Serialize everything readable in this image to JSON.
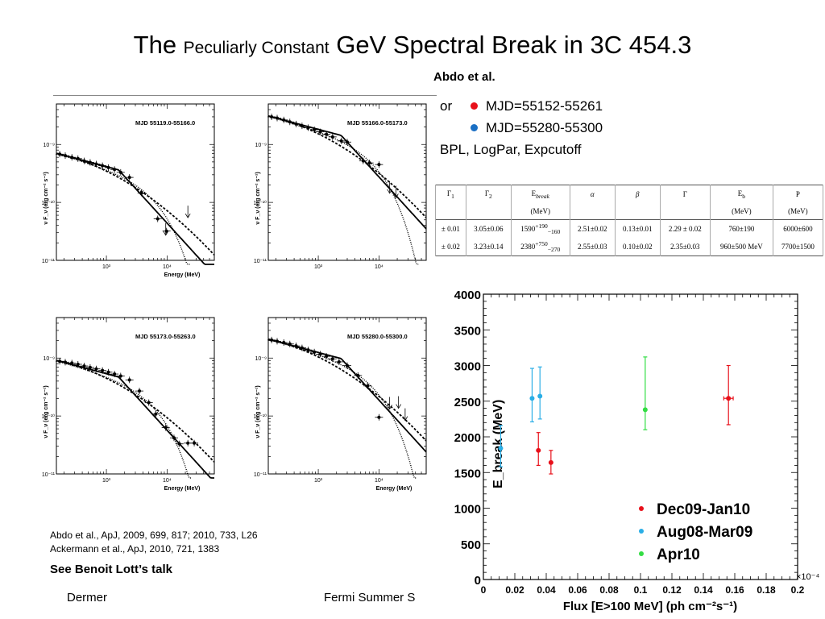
{
  "slide": {
    "title_part1": "The ",
    "title_part2": "Peculiarly Constant",
    "title_part3": " GeV Spectral Break in 3C 454.3",
    "subtitle": "Abdo et al.",
    "legend_top": [
      {
        "prefix": "or",
        "color": "#e8101a",
        "label": "MJD=55152-55261"
      },
      {
        "prefix": "",
        "color": "#1a6fc4",
        "label": "MJD=55280-55300"
      }
    ],
    "legend_models": "BPL, LogPar, Expcutoff",
    "references": [
      "Abdo et al., ApJ, 2009, 699, 817; 2010, 733, L26",
      "Ackermann et al., ApJ, 2010, 721, 1383"
    ],
    "see_talk": "See Benoit Lott’s talk",
    "footer_left": "Dermer",
    "footer_mid": "Fermi Summer S"
  },
  "param_table": {
    "headers": [
      "Γ1",
      "Γ2",
      "E_break",
      "α",
      "β",
      "Γ",
      "E_b",
      "P"
    ],
    "units": [
      "",
      "",
      "(MeV)",
      "",
      "",
      "",
      "(MeV)",
      "(MeV)"
    ],
    "rows": [
      [
        "± 0.01",
        "3.05±0.06",
        "1590+190−160",
        "2.51±0.02",
        "0.13±0.01",
        "2.29 ± 0.02",
        "760±190",
        "6000±600"
      ],
      [
        "± 0.02",
        "3.23±0.14",
        "2380+750−270",
        "2.55±0.03",
        "0.10±0.02",
        "2.35±0.03",
        "960±500 MeV",
        "7700±1500"
      ]
    ]
  },
  "chart_data": [
    {
      "type": "scatter",
      "title": "MJD 55119.0-55166.0",
      "xlabel": "Energy (MeV)",
      "ylabel": "ν F_ν (erg cm⁻² s⁻¹)",
      "xscale": "log",
      "yscale": "log",
      "xlim": [
        150,
        60000
      ],
      "ylim": [
        1e-11,
        5e-09
      ],
      "x_ticks": [
        "10³",
        "10⁴"
      ],
      "y_ticks": [
        "10⁻⁹",
        "10⁻¹⁰",
        "10⁻¹¹"
      ],
      "points": [
        [
          170,
          6.8e-10
        ],
        [
          210,
          6.4e-10
        ],
        [
          270,
          6e-10
        ],
        [
          340,
          5.7e-10
        ],
        [
          430,
          5.2e-10
        ],
        [
          540,
          4.9e-10
        ],
        [
          680,
          4.6e-10
        ],
        [
          860,
          4.3e-10
        ],
        [
          1080,
          4e-10
        ],
        [
          1360,
          3.7e-10
        ],
        [
          1720,
          3.3e-10
        ],
        [
          2400,
          2.7e-10
        ],
        [
          3800,
          1.45e-10
        ],
        [
          7000,
          5.2e-11
        ],
        [
          9800,
          3.2e-11
        ]
      ],
      "upper_limits": [
        [
          9500,
          3.4e-11
        ],
        [
          22000,
          6.8e-11
        ]
      ],
      "break_energy": 1590,
      "models": [
        "BPL",
        "LogPar",
        "Expcutoff"
      ]
    },
    {
      "type": "scatter",
      "title": "MJD 55166.0-55173.0",
      "xlabel": "",
      "ylabel": "ν F_ν (erg cm⁻² s⁻¹)",
      "xscale": "log",
      "yscale": "log",
      "xlim": [
        150,
        60000
      ],
      "ylim": [
        1e-11,
        5e-09
      ],
      "x_ticks": [
        "10³",
        "10⁴"
      ],
      "y_ticks": [
        "10⁻⁹",
        "10⁻¹⁰",
        "10⁻¹¹"
      ],
      "points": [
        [
          170,
          3e-09
        ],
        [
          210,
          2.85e-09
        ],
        [
          270,
          2.65e-09
        ],
        [
          340,
          2.45e-09
        ],
        [
          430,
          2.25e-09
        ],
        [
          540,
          2.1e-09
        ],
        [
          680,
          1.95e-09
        ],
        [
          860,
          1.8e-09
        ],
        [
          1080,
          1.65e-09
        ],
        [
          1360,
          1.5e-09
        ],
        [
          1720,
          1.35e-09
        ],
        [
          2400,
          1.15e-09
        ],
        [
          3000,
          1.1e-09
        ],
        [
          5500,
          5.2e-10
        ],
        [
          7000,
          4.8e-10
        ],
        [
          10000,
          4.5e-10
        ]
      ],
      "upper_limits": [
        [
          15000,
          1.8e-10
        ],
        [
          19000,
          1.5e-10
        ]
      ],
      "break_energy": 2380,
      "models": [
        "BPL",
        "LogPar",
        "Expcutoff"
      ]
    },
    {
      "type": "scatter",
      "title": "MJD 55173.0-55263.0",
      "xlabel": "Energy (MeV)",
      "ylabel": "ν F_ν (erg cm⁻² s⁻¹)",
      "xscale": "log",
      "yscale": "log",
      "xlim": [
        150,
        60000
      ],
      "ylim": [
        1e-11,
        5e-09
      ],
      "x_ticks": [
        "10³",
        "10⁴"
      ],
      "y_ticks": [
        "10⁻⁹",
        "10⁻¹⁰",
        "10⁻¹¹"
      ],
      "points": [
        [
          170,
          8.8e-10
        ],
        [
          210,
          8.5e-10
        ],
        [
          270,
          8.2e-10
        ],
        [
          340,
          7.8e-10
        ],
        [
          430,
          7.3e-10
        ],
        [
          540,
          6.9e-10
        ],
        [
          680,
          6.5e-10
        ],
        [
          860,
          6.1e-10
        ],
        [
          1080,
          5.7e-10
        ],
        [
          1360,
          5.3e-10
        ],
        [
          1720,
          4.9e-10
        ],
        [
          2400,
          4.2e-10
        ],
        [
          3500,
          2.7e-10
        ],
        [
          5000,
          1.7e-10
        ],
        [
          6500,
          1.08e-10
        ],
        [
          9500,
          6.3e-11
        ],
        [
          13000,
          4.2e-11
        ],
        [
          16000,
          3.3e-11
        ],
        [
          22000,
          3.4e-11
        ],
        [
          28000,
          3.4e-11
        ]
      ],
      "upper_limits": [],
      "break_energy": 1590,
      "models": [
        "BPL",
        "LogPar",
        "Expcutoff"
      ]
    },
    {
      "type": "scatter",
      "title": "MJD 55280.0-55300.0",
      "xlabel": "Energy (MeV)",
      "ylabel": "ν F_ν (erg cm⁻² s⁻¹)",
      "xscale": "log",
      "yscale": "log",
      "xlim": [
        150,
        60000
      ],
      "ylim": [
        1e-11,
        5e-09
      ],
      "x_ticks": [
        "10³",
        "10⁴"
      ],
      "y_ticks": [
        "10⁻⁹",
        "10⁻¹⁰",
        "10⁻¹¹"
      ],
      "points": [
        [
          170,
          2.05e-09
        ],
        [
          210,
          1.95e-09
        ],
        [
          270,
          1.85e-09
        ],
        [
          340,
          1.75e-09
        ],
        [
          430,
          1.62e-09
        ],
        [
          540,
          1.5e-09
        ],
        [
          680,
          1.38e-09
        ],
        [
          860,
          1.27e-09
        ],
        [
          1080,
          1.17e-09
        ],
        [
          1360,
          1.07e-09
        ],
        [
          1720,
          9.7e-10
        ],
        [
          2200,
          8.6e-10
        ],
        [
          3000,
          7.4e-10
        ],
        [
          4500,
          5e-10
        ],
        [
          6500,
          3.3e-10
        ],
        [
          10000,
          9.5e-11
        ]
      ],
      "upper_limits": [
        [
          15000,
          1.65e-10
        ],
        [
          21000,
          1.7e-10
        ],
        [
          27000,
          1.05e-10
        ]
      ],
      "break_energy": 2380,
      "models": [
        "BPL",
        "LogPar",
        "Expcutoff"
      ]
    },
    {
      "type": "scatter",
      "title": "",
      "xlabel": "Flux [E>100 MeV] (ph cm⁻²s⁻¹)",
      "ylabel": "E_break (MeV)",
      "x_multiplier": "×10⁻⁴",
      "xlim": [
        0,
        0.2
      ],
      "ylim": [
        0,
        4000
      ],
      "x_ticks": [
        0,
        0.02,
        0.04,
        0.06,
        0.08,
        0.1,
        0.12,
        0.14,
        0.16,
        0.18,
        0.2
      ],
      "y_ticks": [
        0,
        500,
        1000,
        1500,
        2000,
        2500,
        3000,
        3500,
        4000
      ],
      "legend_position": "bottom-right",
      "series": [
        {
          "name": "Dec09-Jan10",
          "color": "#e8101a",
          "points": [
            {
              "x": 0.035,
              "y": 1810,
              "ylo": 1600,
              "yhi": 2060,
              "xerr": 0
            },
            {
              "x": 0.043,
              "y": 1640,
              "ylo": 1480,
              "yhi": 1810,
              "xerr": 0
            },
            {
              "x": 0.156,
              "y": 2540,
              "ylo": 2170,
              "yhi": 3000,
              "xerr": 0.003
            }
          ]
        },
        {
          "name": "Aug08-Mar09",
          "color": "#2aaee6",
          "points": [
            {
              "x": 0.011,
              "y": 1840,
              "ylo": 1580,
              "yhi": 2160,
              "xerr": 0
            },
            {
              "x": 0.031,
              "y": 2540,
              "ylo": 2210,
              "yhi": 2960,
              "xerr": 0
            },
            {
              "x": 0.036,
              "y": 2570,
              "ylo": 2250,
              "yhi": 2980,
              "xerr": 0
            }
          ]
        },
        {
          "name": "Apr10",
          "color": "#33dd44",
          "points": [
            {
              "x": 0.103,
              "y": 2380,
              "ylo": 2100,
              "yhi": 3120,
              "xerr": 0
            }
          ]
        }
      ]
    }
  ]
}
